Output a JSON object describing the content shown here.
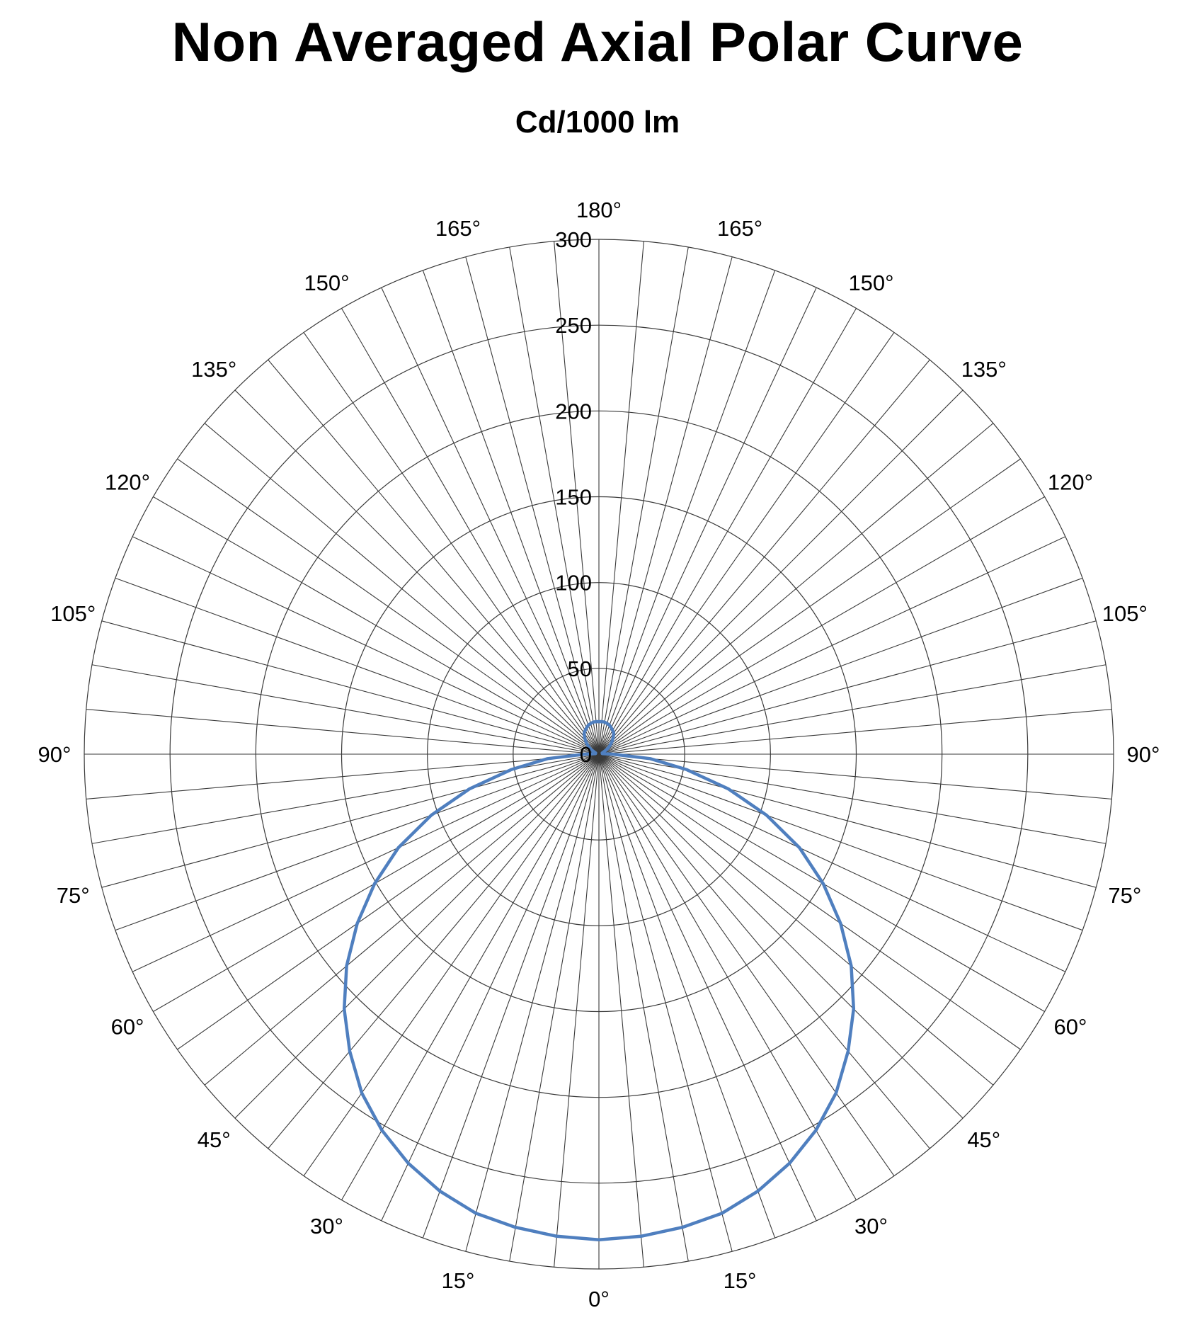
{
  "chart_data": {
    "type": "line",
    "projection": "polar",
    "title": "Non Averaged Axial Polar Curve",
    "subtitle": "Cd/1000 lm",
    "radial_ticks": [
      "0",
      "50",
      "100",
      "150",
      "200",
      "250",
      "300"
    ],
    "radial_range": [
      0,
      300
    ],
    "angle_tick_labels": {
      "left": [
        "165°",
        "150°",
        "135°",
        "120°",
        "105°",
        "90°",
        "75°",
        "60°",
        "45°",
        "30°",
        "15°"
      ],
      "right": [
        "165°",
        "150°",
        "135°",
        "120°",
        "105°",
        "90°",
        "75°",
        "60°",
        "45°",
        "30°",
        "15°"
      ],
      "top": "180°",
      "bottom": "0°"
    },
    "angle_ticks_deg": [
      165,
      150,
      135,
      120,
      105,
      90,
      75,
      60,
      45,
      30,
      15
    ],
    "gridline_spacing_deg": 5,
    "grid": true,
    "series": [
      {
        "color": "#4f7fbf",
        "angles": [
          0,
          5,
          10,
          15,
          20,
          25,
          30,
          35,
          40,
          45,
          50,
          55,
          60,
          65,
          70,
          75,
          80,
          85,
          90,
          95,
          100,
          105,
          110,
          115,
          120,
          125,
          130,
          135,
          140,
          145,
          150,
          155,
          160,
          165,
          170,
          175,
          180
        ],
        "values": [
          283,
          282,
          280,
          277,
          271,
          263,
          253,
          241,
          226,
          210,
          192,
          172,
          151,
          129,
          104,
          78,
          52,
          30,
          8,
          3,
          2,
          2,
          2,
          3,
          5,
          7,
          9,
          11,
          13,
          15,
          16,
          17,
          18,
          18.5,
          19,
          19,
          19
        ]
      }
    ]
  }
}
